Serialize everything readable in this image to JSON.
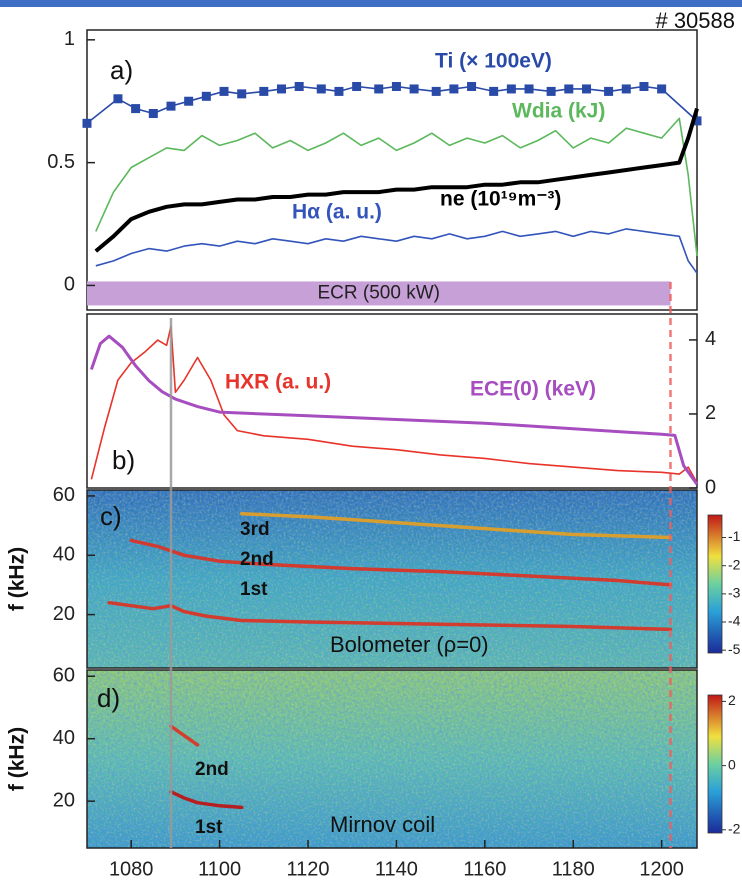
{
  "chart_data": [
    {
      "type": "line",
      "title": "# 30588",
      "panel_label": "a)",
      "xlim": [
        1070,
        1208
      ],
      "ylim": [
        -0.1,
        1.04
      ],
      "yticks": [
        0,
        0.5,
        1
      ],
      "span": {
        "label": "ECR (500 kW)",
        "x": [
          1070,
          1202
        ],
        "color": "#c8a0d8"
      },
      "vlines": [
        {
          "x": 1089,
          "color": "#9a9a9a"
        },
        {
          "x": 1202,
          "color": "#f06060",
          "dash": true
        }
      ],
      "series": [
        {
          "name": "Ti (× 100eV)",
          "color": "#2a4aa8",
          "marker": true,
          "x": [
            1070,
            1077,
            1081,
            1085,
            1089,
            1093,
            1097,
            1101,
            1105,
            1110,
            1114,
            1118,
            1123,
            1127,
            1131,
            1136,
            1140,
            1144,
            1149,
            1153,
            1157,
            1162,
            1166,
            1170,
            1175,
            1179,
            1183,
            1188,
            1192,
            1196,
            1200,
            1208
          ],
          "values": [
            0.66,
            0.76,
            0.72,
            0.7,
            0.73,
            0.75,
            0.77,
            0.79,
            0.78,
            0.79,
            0.8,
            0.81,
            0.8,
            0.79,
            0.81,
            0.8,
            0.81,
            0.8,
            0.79,
            0.8,
            0.81,
            0.79,
            0.8,
            0.8,
            0.79,
            0.8,
            0.8,
            0.79,
            0.8,
            0.81,
            0.8,
            0.67
          ]
        },
        {
          "name": "Wdia (kJ)",
          "color": "#5cb85c",
          "x": [
            1072,
            1076,
            1080,
            1084,
            1088,
            1092,
            1096,
            1100,
            1104,
            1108,
            1112,
            1116,
            1120,
            1124,
            1128,
            1132,
            1136,
            1140,
            1144,
            1148,
            1152,
            1156,
            1160,
            1164,
            1168,
            1172,
            1176,
            1180,
            1184,
            1188,
            1192,
            1196,
            1200,
            1204,
            1206,
            1208
          ],
          "values": [
            0.22,
            0.38,
            0.48,
            0.52,
            0.56,
            0.55,
            0.61,
            0.57,
            0.59,
            0.62,
            0.56,
            0.59,
            0.55,
            0.58,
            0.62,
            0.57,
            0.6,
            0.55,
            0.58,
            0.62,
            0.57,
            0.6,
            0.58,
            0.61,
            0.56,
            0.59,
            0.63,
            0.56,
            0.6,
            0.58,
            0.64,
            0.62,
            0.6,
            0.68,
            0.45,
            0.12
          ]
        },
        {
          "name": "Hα (a. u.)",
          "color": "#3355bb",
          "x": [
            1072,
            1076,
            1080,
            1084,
            1088,
            1092,
            1096,
            1100,
            1104,
            1108,
            1112,
            1116,
            1120,
            1124,
            1128,
            1132,
            1136,
            1140,
            1144,
            1148,
            1152,
            1156,
            1160,
            1164,
            1168,
            1172,
            1176,
            1180,
            1184,
            1188,
            1192,
            1196,
            1200,
            1204,
            1206,
            1208
          ],
          "values": [
            0.08,
            0.1,
            0.13,
            0.15,
            0.14,
            0.16,
            0.17,
            0.16,
            0.18,
            0.17,
            0.19,
            0.18,
            0.17,
            0.19,
            0.18,
            0.2,
            0.19,
            0.18,
            0.2,
            0.19,
            0.21,
            0.19,
            0.2,
            0.22,
            0.2,
            0.21,
            0.22,
            0.2,
            0.22,
            0.21,
            0.23,
            0.22,
            0.21,
            0.2,
            0.1,
            0.05
          ]
        },
        {
          "name": "ne (10¹⁹m⁻³)",
          "color": "#000000",
          "width": 4,
          "x": [
            1072,
            1076,
            1080,
            1084,
            1088,
            1092,
            1096,
            1100,
            1104,
            1108,
            1112,
            1116,
            1120,
            1124,
            1128,
            1132,
            1136,
            1140,
            1144,
            1148,
            1152,
            1156,
            1160,
            1164,
            1168,
            1172,
            1176,
            1180,
            1184,
            1188,
            1192,
            1196,
            1200,
            1204,
            1206,
            1208
          ],
          "values": [
            0.14,
            0.2,
            0.27,
            0.3,
            0.32,
            0.33,
            0.33,
            0.34,
            0.35,
            0.35,
            0.36,
            0.36,
            0.37,
            0.37,
            0.38,
            0.38,
            0.38,
            0.39,
            0.39,
            0.4,
            0.4,
            0.4,
            0.41,
            0.41,
            0.42,
            0.42,
            0.43,
            0.44,
            0.45,
            0.46,
            0.47,
            0.48,
            0.49,
            0.5,
            0.6,
            0.72
          ]
        }
      ]
    },
    {
      "type": "line",
      "panel_label": "b)",
      "xlim": [
        1070,
        1208
      ],
      "ylim": [
        0,
        1
      ],
      "y2lim": [
        0,
        4.7
      ],
      "y2ticks": [
        0,
        2,
        4
      ],
      "series": [
        {
          "name": "HXR (a. u.)",
          "color": "#e8332a",
          "x": [
            1071,
            1074,
            1077,
            1080,
            1083,
            1086,
            1088,
            1089,
            1090,
            1092,
            1095,
            1098,
            1101,
            1104,
            1110,
            1120,
            1130,
            1140,
            1150,
            1160,
            1170,
            1180,
            1190,
            1200,
            1204,
            1206,
            1208
          ],
          "values": [
            0.05,
            0.35,
            0.62,
            0.72,
            0.78,
            0.85,
            0.82,
            0.93,
            0.55,
            0.62,
            0.75,
            0.62,
            0.42,
            0.33,
            0.3,
            0.28,
            0.24,
            0.22,
            0.19,
            0.17,
            0.14,
            0.12,
            0.1,
            0.09,
            0.08,
            0.12,
            0.03
          ]
        },
        {
          "name": "ECE(0) (keV)",
          "color": "#a64dbf",
          "axis": "y2",
          "width": 3,
          "x": [
            1071,
            1073,
            1075,
            1078,
            1081,
            1084,
            1087,
            1090,
            1095,
            1100,
            1110,
            1120,
            1140,
            1160,
            1180,
            1200,
            1203,
            1205,
            1208
          ],
          "values": [
            3.2,
            3.9,
            4.1,
            3.8,
            3.3,
            2.9,
            2.6,
            2.4,
            2.2,
            2.05,
            2.0,
            1.95,
            1.85,
            1.75,
            1.6,
            1.45,
            1.42,
            0.6,
            0.1
          ]
        }
      ]
    },
    {
      "type": "spectrogram",
      "panel_label": "c)",
      "ylabel": "f (kHz)",
      "annotation": "Bolometer (ρ=0)",
      "xlim": [
        1070,
        1208
      ],
      "ylim": [
        2,
        62
      ],
      "yticks": [
        20,
        40,
        60
      ],
      "colorbar": {
        "lim": [
          -5.1,
          -0.2
        ],
        "ticks": [
          -1,
          -2,
          -3,
          -4,
          -5
        ]
      },
      "series": [
        {
          "name": "1st",
          "color": "#e03020",
          "x": [
            1075,
            1080,
            1085,
            1089,
            1092,
            1097,
            1105,
            1120,
            1140,
            1160,
            1180,
            1202
          ],
          "values": [
            24,
            23,
            22,
            23,
            21,
            19.5,
            18,
            17.5,
            17,
            16.5,
            16,
            15
          ]
        },
        {
          "name": "2nd",
          "color": "#e03020",
          "x": [
            1080,
            1086,
            1092,
            1100,
            1110,
            1130,
            1150,
            1170,
            1190,
            1202
          ],
          "values": [
            45,
            43,
            40,
            38,
            37,
            35.5,
            34.5,
            33,
            31.5,
            30
          ]
        },
        {
          "name": "3rd",
          "color": "#e8a020",
          "x": [
            1105,
            1120,
            1140,
            1160,
            1180,
            1202
          ],
          "values": [
            54,
            53,
            51,
            49,
            47,
            46
          ]
        }
      ]
    },
    {
      "type": "spectrogram",
      "panel_label": "d)",
      "ylabel": "f (kHz)",
      "annotation": "Mirnov coil",
      "xlim": [
        1070,
        1208
      ],
      "ylim": [
        5,
        62
      ],
      "yticks": [
        20,
        40,
        60
      ],
      "xticks": [
        1080,
        1100,
        1120,
        1140,
        1160,
        1180,
        1200
      ],
      "colorbar": {
        "lim": [
          -2.1,
          2.2
        ],
        "ticks": [
          2,
          0,
          -2
        ]
      },
      "series": [
        {
          "name": "2nd",
          "color": "#e03020",
          "x": [
            1089,
            1091,
            1093,
            1095
          ],
          "values": [
            44,
            42,
            40,
            38
          ]
        },
        {
          "name": "1st",
          "color": "#c01010",
          "x": [
            1089,
            1092,
            1095,
            1100,
            1105
          ],
          "values": [
            23,
            21,
            19.5,
            18.5,
            18
          ]
        }
      ]
    }
  ]
}
